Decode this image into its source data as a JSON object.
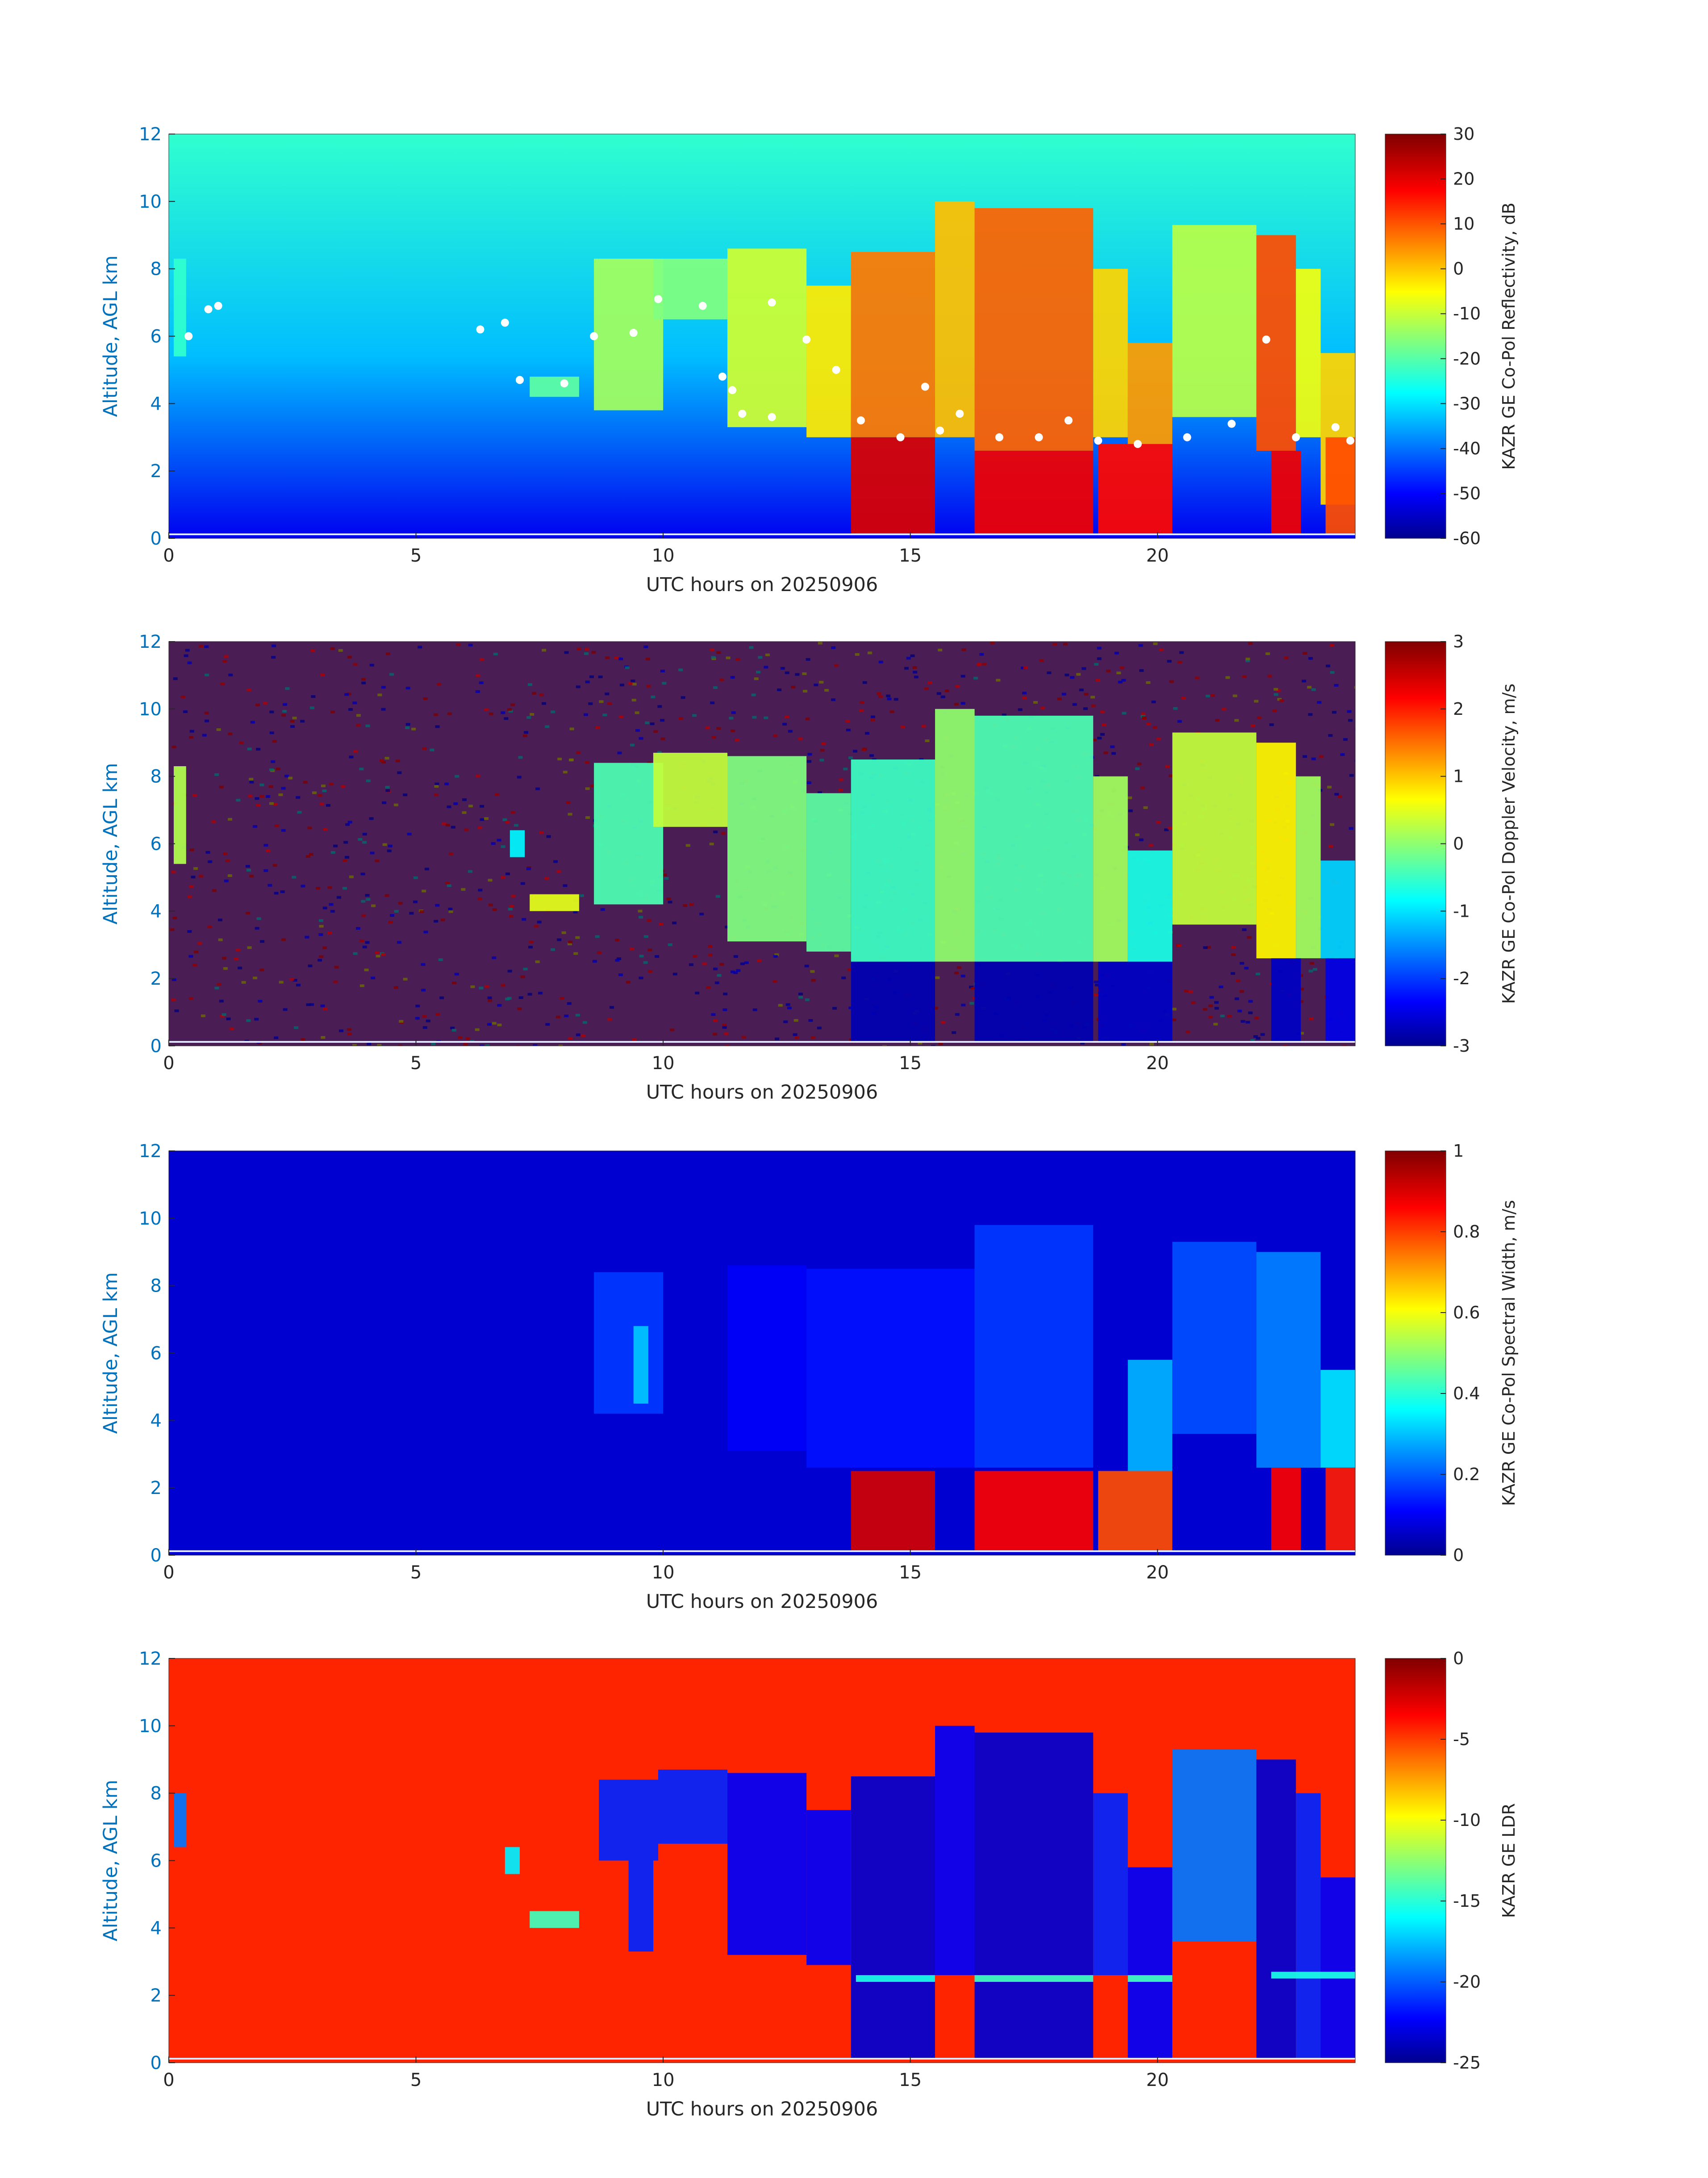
{
  "palette": {
    "jet": [
      "#00008f",
      "#0000ff",
      "#00ffff",
      "#ffff00",
      "#ff0000",
      "#800000"
    ],
    "axis_text": "#0072bd",
    "text": "#262626",
    "melting_layer": "#ffffff"
  },
  "chart_data": [
    {
      "type": "heatmap",
      "xlabel": "UTC hours on 20250906",
      "ylabel": "Altitude, AGL km",
      "xticks": [
        "0",
        "5",
        "10",
        "15",
        "20"
      ],
      "yticks": [
        "0",
        "2",
        "4",
        "6",
        "8",
        "10",
        "12"
      ],
      "xlim": [
        0,
        24
      ],
      "ylim": [
        0,
        12
      ],
      "colorbar": {
        "label": "KAZR GE Co-Pol Reflectivity, dB",
        "min": -60,
        "max": 30,
        "ticks": [
          "-60",
          "-50",
          "-40",
          "-30",
          "-20",
          "-10",
          "0",
          "10",
          "20",
          "30"
        ]
      },
      "background": {
        "mode": "gradient",
        "top": -22,
        "bottom": -50
      },
      "fields": [
        {
          "t0": 0.1,
          "t1": 0.35,
          "base": 5.4,
          "top": 8.3,
          "v": -22
        },
        {
          "t0": 7.3,
          "t1": 8.3,
          "base": 4.2,
          "top": 4.8,
          "v": -18
        },
        {
          "t0": 8.6,
          "t1": 10.0,
          "base": 3.8,
          "top": 8.3,
          "v": -12
        },
        {
          "t0": 9.8,
          "t1": 11.3,
          "base": 6.5,
          "top": 8.3,
          "v": -15
        },
        {
          "t0": 11.3,
          "t1": 12.9,
          "base": 3.3,
          "top": 8.6,
          "v": -8
        },
        {
          "t0": 12.9,
          "t1": 13.8,
          "base": 3.0,
          "top": 7.5,
          "v": -2
        },
        {
          "t0": 13.8,
          "t1": 15.5,
          "base": 3.0,
          "top": 8.5,
          "v": 8
        },
        {
          "t0": 15.5,
          "t1": 16.3,
          "base": 3.0,
          "top": 10.0,
          "v": 2
        },
        {
          "t0": 16.3,
          "t1": 18.7,
          "base": 2.6,
          "top": 9.8,
          "v": 10
        },
        {
          "t0": 18.7,
          "t1": 19.4,
          "base": 3.0,
          "top": 8.0,
          "v": 0
        },
        {
          "t0": 19.4,
          "t1": 20.3,
          "base": 2.8,
          "top": 5.8,
          "v": 5
        },
        {
          "t0": 20.3,
          "t1": 22.0,
          "base": 3.6,
          "top": 9.3,
          "v": -10
        },
        {
          "t0": 22.0,
          "t1": 22.8,
          "base": 2.6,
          "top": 9.0,
          "v": 12
        },
        {
          "t0": 22.8,
          "t1": 23.3,
          "base": 3.0,
          "top": 8.0,
          "v": -5
        },
        {
          "t0": 23.3,
          "t1": 24.0,
          "base": 1.0,
          "top": 5.5,
          "v": 0
        },
        {
          "t0": 13.8,
          "t1": 15.5,
          "base": 0.1,
          "top": 3.0,
          "v": 22
        },
        {
          "t0": 16.3,
          "t1": 18.7,
          "base": 0.1,
          "top": 2.6,
          "v": 20
        },
        {
          "t0": 18.8,
          "t1": 20.3,
          "base": 0.1,
          "top": 2.8,
          "v": 18
        },
        {
          "t0": 22.3,
          "t1": 22.9,
          "base": 0.1,
          "top": 2.6,
          "v": 20
        },
        {
          "t0": 23.4,
          "t1": 24.0,
          "base": 0.1,
          "top": 3.0,
          "v": 12
        }
      ],
      "melting_layer_km": [
        [
          0.4,
          6.0
        ],
        [
          0.8,
          6.8
        ],
        [
          1.0,
          6.9
        ],
        [
          6.3,
          6.2
        ],
        [
          6.8,
          6.4
        ],
        [
          7.1,
          4.7
        ],
        [
          8.0,
          4.6
        ],
        [
          8.6,
          6.0
        ],
        [
          9.4,
          6.1
        ],
        [
          9.9,
          7.1
        ],
        [
          10.8,
          6.9
        ],
        [
          11.2,
          4.8
        ],
        [
          11.4,
          4.4
        ],
        [
          11.6,
          3.7
        ],
        [
          12.2,
          3.6
        ],
        [
          12.2,
          7.0
        ],
        [
          12.9,
          5.9
        ],
        [
          13.5,
          5.0
        ],
        [
          14.0,
          3.5
        ],
        [
          14.8,
          3.0
        ],
        [
          15.3,
          4.5
        ],
        [
          15.6,
          3.2
        ],
        [
          16.0,
          3.7
        ],
        [
          16.8,
          3.0
        ],
        [
          17.6,
          3.0
        ],
        [
          18.2,
          3.5
        ],
        [
          18.8,
          2.9
        ],
        [
          19.6,
          2.8
        ],
        [
          20.6,
          3.0
        ],
        [
          21.5,
          3.4
        ],
        [
          22.2,
          5.9
        ],
        [
          22.8,
          3.0
        ],
        [
          23.6,
          3.3
        ],
        [
          23.9,
          2.9
        ]
      ]
    },
    {
      "type": "heatmap",
      "xlabel": "UTC hours on 20250906",
      "ylabel": "Altitude, AGL km",
      "xticks": [
        "0",
        "5",
        "10",
        "15",
        "20"
      ],
      "yticks": [
        "0",
        "2",
        "4",
        "6",
        "8",
        "10",
        "12"
      ],
      "xlim": [
        0,
        24
      ],
      "ylim": [
        0,
        12
      ],
      "colorbar": {
        "label": "KAZR GE Co-Pol Doppler Velocity, m/s",
        "min": -3,
        "max": 3,
        "ticks": [
          "-3",
          "-2",
          "-1",
          "0",
          "1",
          "2",
          "3"
        ]
      },
      "background": {
        "mode": "noise"
      },
      "fields": [
        {
          "t0": 0.1,
          "t1": 0.35,
          "base": 5.4,
          "top": 8.3,
          "v": 0.3
        },
        {
          "t0": 6.9,
          "t1": 7.2,
          "base": 5.6,
          "top": 6.4,
          "v": -0.8
        },
        {
          "t0": 7.3,
          "t1": 8.3,
          "base": 4.0,
          "top": 4.5,
          "v": 0.6
        },
        {
          "t0": 8.6,
          "t1": 10.0,
          "base": 4.2,
          "top": 8.4,
          "v": -0.3
        },
        {
          "t0": 9.8,
          "t1": 11.3,
          "base": 6.5,
          "top": 8.7,
          "v": 0.4
        },
        {
          "t0": 11.3,
          "t1": 12.9,
          "base": 3.1,
          "top": 8.6,
          "v": 0.0
        },
        {
          "t0": 12.9,
          "t1": 13.8,
          "base": 2.8,
          "top": 7.5,
          "v": -0.2
        },
        {
          "t0": 13.8,
          "t1": 15.5,
          "base": 2.5,
          "top": 8.5,
          "v": -0.4
        },
        {
          "t0": 15.5,
          "t1": 16.3,
          "base": 2.5,
          "top": 10.0,
          "v": 0.1
        },
        {
          "t0": 16.3,
          "t1": 18.7,
          "base": 2.5,
          "top": 9.8,
          "v": -0.3
        },
        {
          "t0": 18.7,
          "t1": 19.4,
          "base": 2.5,
          "top": 8.0,
          "v": 0.2
        },
        {
          "t0": 19.4,
          "t1": 20.3,
          "base": 2.5,
          "top": 5.8,
          "v": -0.6
        },
        {
          "t0": 20.3,
          "t1": 22.0,
          "base": 3.6,
          "top": 9.3,
          "v": 0.4
        },
        {
          "t0": 22.0,
          "t1": 22.8,
          "base": 2.6,
          "top": 9.0,
          "v": 0.8
        },
        {
          "t0": 22.8,
          "t1": 23.3,
          "base": 2.6,
          "top": 8.0,
          "v": 0.2
        },
        {
          "t0": 23.3,
          "t1": 24.0,
          "base": 2.6,
          "top": 5.5,
          "v": -1.0
        },
        {
          "t0": 13.8,
          "t1": 15.5,
          "base": 0.1,
          "top": 2.5,
          "v": -2.7
        },
        {
          "t0": 16.3,
          "t1": 18.7,
          "base": 0.1,
          "top": 2.5,
          "v": -2.7
        },
        {
          "t0": 18.8,
          "t1": 20.3,
          "base": 0.1,
          "top": 2.5,
          "v": -2.6
        },
        {
          "t0": 22.3,
          "t1": 22.9,
          "base": 0.1,
          "top": 2.6,
          "v": -2.6
        },
        {
          "t0": 23.4,
          "t1": 24.0,
          "base": 0.1,
          "top": 2.6,
          "v": -2.4
        }
      ]
    },
    {
      "type": "heatmap",
      "xlabel": "UTC hours on 20250906",
      "ylabel": "Altitude, AGL km",
      "xticks": [
        "0",
        "5",
        "10",
        "15",
        "20"
      ],
      "yticks": [
        "0",
        "2",
        "4",
        "6",
        "8",
        "10",
        "12"
      ],
      "xlim": [
        0,
        24
      ],
      "ylim": [
        0,
        12
      ],
      "colorbar": {
        "label": "KAZR GE Co-Pol Spectral Width, m/s",
        "min": 0,
        "max": 1,
        "ticks": [
          "0",
          "0.2",
          "0.4",
          "0.6",
          "0.8",
          "1"
        ]
      },
      "background": {
        "mode": "flat",
        "value": 0.08
      },
      "fields": [
        {
          "t0": 8.6,
          "t1": 10.0,
          "base": 4.2,
          "top": 8.4,
          "v": 0.18
        },
        {
          "t0": 9.4,
          "t1": 9.7,
          "base": 4.5,
          "top": 6.8,
          "v": 0.32
        },
        {
          "t0": 11.3,
          "t1": 12.9,
          "base": 3.1,
          "top": 8.6,
          "v": 0.12
        },
        {
          "t0": 12.9,
          "t1": 16.3,
          "base": 2.6,
          "top": 8.5,
          "v": 0.14
        },
        {
          "t0": 16.3,
          "t1": 18.7,
          "base": 2.6,
          "top": 9.8,
          "v": 0.18
        },
        {
          "t0": 19.4,
          "t1": 20.3,
          "base": 2.5,
          "top": 5.8,
          "v": 0.3
        },
        {
          "t0": 20.3,
          "t1": 22.0,
          "base": 3.6,
          "top": 9.3,
          "v": 0.2
        },
        {
          "t0": 22.0,
          "t1": 23.3,
          "base": 2.6,
          "top": 9.0,
          "v": 0.25
        },
        {
          "t0": 23.3,
          "t1": 24.0,
          "base": 2.6,
          "top": 5.5,
          "v": 0.35
        },
        {
          "t0": 13.8,
          "t1": 15.5,
          "base": 0.1,
          "top": 2.5,
          "v": 0.92
        },
        {
          "t0": 16.3,
          "t1": 18.7,
          "base": 0.1,
          "top": 2.5,
          "v": 0.88
        },
        {
          "t0": 18.8,
          "t1": 20.3,
          "base": 0.1,
          "top": 2.5,
          "v": 0.8
        },
        {
          "t0": 22.3,
          "t1": 22.9,
          "base": 0.1,
          "top": 2.6,
          "v": 0.88
        },
        {
          "t0": 23.4,
          "t1": 24.0,
          "base": 0.1,
          "top": 2.6,
          "v": 0.85
        }
      ]
    },
    {
      "type": "heatmap",
      "xlabel": "UTC hours on 20250906",
      "ylabel": "Altitude, AGL km",
      "xticks": [
        "0",
        "5",
        "10",
        "15",
        "20"
      ],
      "yticks": [
        "0",
        "2",
        "4",
        "6",
        "8",
        "10",
        "12"
      ],
      "xlim": [
        0,
        24
      ],
      "ylim": [
        0,
        12
      ],
      "colorbar": {
        "label": "KAZR GE LDR",
        "min": -25,
        "max": 0,
        "ticks": [
          "-25",
          "-20",
          "-15",
          "-10",
          "-5",
          "0"
        ]
      },
      "background": {
        "mode": "flat",
        "value": -4
      },
      "fields": [
        {
          "t0": 0.1,
          "t1": 0.35,
          "base": 6.4,
          "top": 8.0,
          "v": -19
        },
        {
          "t0": 6.8,
          "t1": 7.1,
          "base": 5.6,
          "top": 6.4,
          "v": -16
        },
        {
          "t0": 7.3,
          "t1": 8.3,
          "base": 4.0,
          "top": 4.5,
          "v": -14
        },
        {
          "t0": 8.7,
          "t1": 9.9,
          "base": 6.0,
          "top": 8.4,
          "v": -21
        },
        {
          "t0": 9.3,
          "t1": 9.8,
          "base": 3.3,
          "top": 6.0,
          "v": -21
        },
        {
          "t0": 9.9,
          "t1": 11.3,
          "base": 6.5,
          "top": 8.7,
          "v": -21
        },
        {
          "t0": 11.3,
          "t1": 12.9,
          "base": 3.2,
          "top": 8.6,
          "v": -22
        },
        {
          "t0": 12.9,
          "t1": 13.8,
          "base": 2.9,
          "top": 7.5,
          "v": -22
        },
        {
          "t0": 13.8,
          "t1": 15.5,
          "base": 0.1,
          "top": 8.5,
          "v": -23
        },
        {
          "t0": 15.5,
          "t1": 16.3,
          "base": 2.6,
          "top": 10.0,
          "v": -22
        },
        {
          "t0": 16.3,
          "t1": 18.7,
          "base": 0.1,
          "top": 9.8,
          "v": -23
        },
        {
          "t0": 18.7,
          "t1": 19.4,
          "base": 2.6,
          "top": 8.0,
          "v": -21
        },
        {
          "t0": 19.4,
          "t1": 20.3,
          "base": 0.1,
          "top": 5.8,
          "v": -22
        },
        {
          "t0": 20.3,
          "t1": 22.0,
          "base": 3.6,
          "top": 9.3,
          "v": -19
        },
        {
          "t0": 22.0,
          "t1": 22.8,
          "base": 0.1,
          "top": 9.0,
          "v": -23
        },
        {
          "t0": 22.8,
          "t1": 23.3,
          "base": 0.1,
          "top": 8.0,
          "v": -21
        },
        {
          "t0": 23.3,
          "t1": 24.0,
          "base": 0.1,
          "top": 5.5,
          "v": -22
        },
        {
          "t0": 13.9,
          "t1": 15.5,
          "base": 2.4,
          "top": 2.6,
          "v": -15
        },
        {
          "t0": 16.3,
          "t1": 18.7,
          "base": 2.4,
          "top": 2.6,
          "v": -14
        },
        {
          "t0": 19.4,
          "t1": 20.3,
          "base": 2.4,
          "top": 2.6,
          "v": -14
        },
        {
          "t0": 22.3,
          "t1": 24.0,
          "base": 2.5,
          "top": 2.7,
          "v": -15
        }
      ]
    }
  ]
}
